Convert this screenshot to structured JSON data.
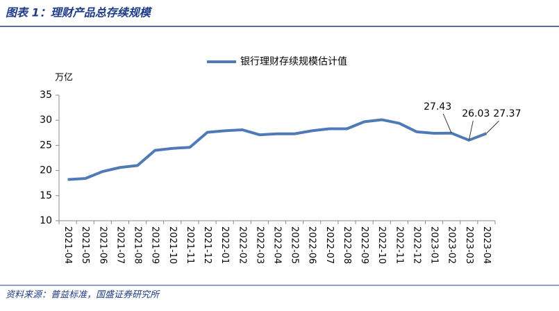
{
  "header": {
    "title": "图表 1：理财产品总存续规模"
  },
  "chart_data": {
    "type": "line",
    "y_unit": "万亿",
    "categories": [
      "2021-04",
      "2021-05",
      "2021-06",
      "2021-07",
      "2021-08",
      "2021-09",
      "2021-10",
      "2021-11",
      "2021-12",
      "2022-01",
      "2022-02",
      "2022-03",
      "2022-04",
      "2022-05",
      "2022-06",
      "2022-07",
      "2022-08",
      "2022-09",
      "2022-10",
      "2022-11",
      "2022-12",
      "2023-01",
      "2023-02",
      "2023-03",
      "2023-04"
    ],
    "series": [
      {
        "name": "银行理财存续规模估计值",
        "color": "#4f7ab8",
        "values": [
          18.2,
          18.4,
          19.8,
          20.6,
          21.0,
          24.0,
          24.4,
          24.6,
          27.6,
          27.9,
          28.1,
          27.1,
          27.3,
          27.3,
          27.9,
          28.3,
          28.3,
          29.7,
          30.1,
          29.4,
          27.7,
          27.4,
          27.43,
          26.03,
          27.37
        ],
        "value_labels": [
          null,
          null,
          null,
          null,
          null,
          null,
          null,
          null,
          null,
          null,
          null,
          null,
          null,
          null,
          null,
          null,
          null,
          null,
          null,
          null,
          null,
          null,
          "27.43",
          "26.03",
          "27.37"
        ]
      }
    ],
    "ylim": [
      10,
      35
    ],
    "yticks": [
      10,
      15,
      20,
      25,
      30,
      35
    ],
    "grid": false,
    "legend": "top"
  },
  "footer": {
    "source": "资料来源：普益标准，国盛证券研究所"
  }
}
